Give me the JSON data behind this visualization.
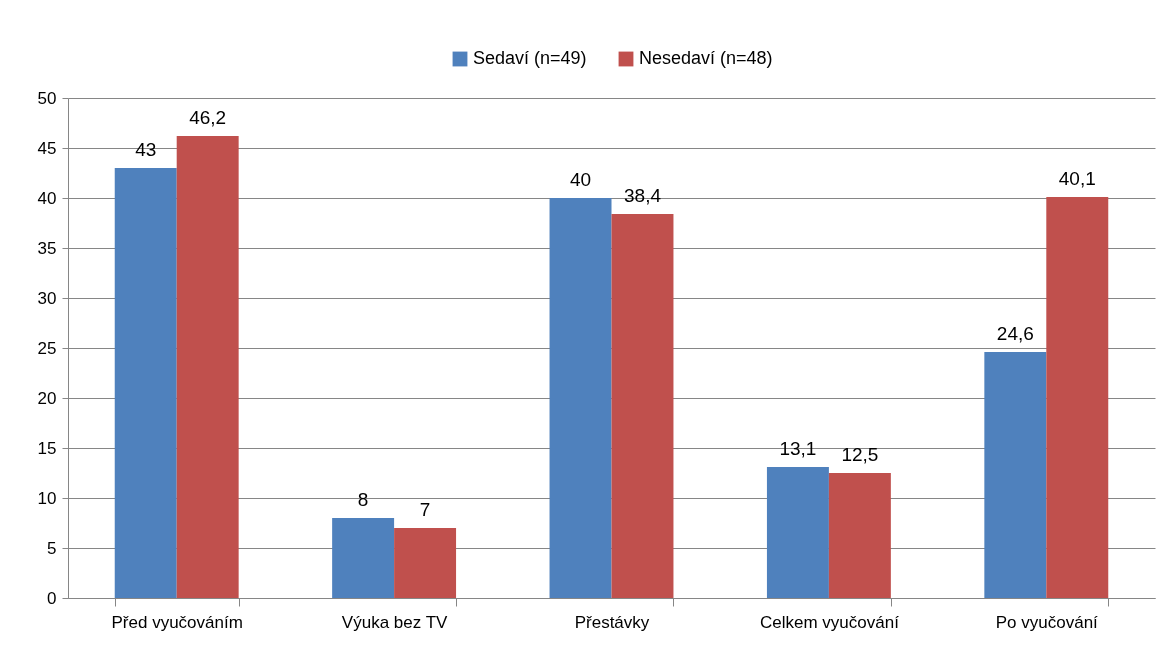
{
  "chart_data": {
    "type": "bar",
    "categories": [
      "Před vyučováním",
      "Výuka bez TV",
      "Přestávky",
      "Celkem vyučování",
      "Po vyučování"
    ],
    "series": [
      {
        "name": "Sedaví (n=49)",
        "color": "#4f81bd",
        "values": [
          43,
          8,
          40,
          13.1,
          24.6
        ],
        "value_labels": [
          "43",
          "8",
          "40",
          "13,1",
          "24,6"
        ]
      },
      {
        "name": "Nesedaví (n=48)",
        "color": "#c0504d",
        "values": [
          46.2,
          7,
          38.4,
          12.5,
          40.1
        ],
        "value_labels": [
          "46,2",
          "7",
          "38,4",
          "12,5",
          "40,1"
        ]
      }
    ],
    "ylim": [
      0,
      50
    ],
    "yticks": [
      0,
      5,
      10,
      15,
      20,
      25,
      30,
      35,
      40,
      45,
      50
    ],
    "grid": "y",
    "legend": "top"
  }
}
